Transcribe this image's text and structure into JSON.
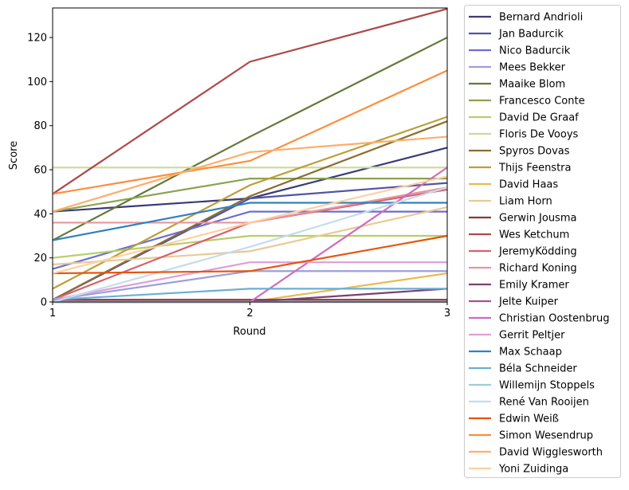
{
  "chart_data": {
    "type": "line",
    "xlabel": "Round",
    "ylabel": "Score",
    "x": [
      1,
      2,
      3
    ],
    "xticks": [
      "1",
      "2",
      "3"
    ],
    "yticks": [
      "0",
      "20",
      "40",
      "60",
      "80",
      "100",
      "120"
    ],
    "xlim": [
      1,
      3
    ],
    "ylim": [
      0,
      133.4
    ],
    "grid": false,
    "legend_position": "outside-right",
    "series": [
      {
        "name": "Bernard Andrioli",
        "color": "#393b79",
        "values": [
          41,
          47,
          70
        ]
      },
      {
        "name": "Jan Badurcik",
        "color": "#5254a3",
        "values": [
          1,
          47,
          54
        ]
      },
      {
        "name": "Nico Badurcik",
        "color": "#6b6ecf",
        "values": [
          15,
          41,
          41
        ]
      },
      {
        "name": "Mees Bekker",
        "color": "#9c9ede",
        "values": [
          1,
          14,
          14
        ]
      },
      {
        "name": "Maaike Blom",
        "color": "#637939",
        "values": [
          28,
          75,
          120
        ]
      },
      {
        "name": "Francesco Conte",
        "color": "#8ca252",
        "values": [
          41,
          56,
          56
        ]
      },
      {
        "name": "David De Graaf",
        "color": "#b5cf6b",
        "values": [
          20,
          30,
          30
        ]
      },
      {
        "name": "Floris De Vooys",
        "color": "#cedb9c",
        "values": [
          61,
          61,
          61
        ]
      },
      {
        "name": "Spyros Dovas",
        "color": "#8c6d31",
        "values": [
          1,
          48,
          82
        ]
      },
      {
        "name": "Thijs Feenstra",
        "color": "#bd9e39",
        "values": [
          6,
          53,
          84
        ]
      },
      {
        "name": "David Haas",
        "color": "#e7ba52",
        "values": [
          0,
          0,
          13
        ]
      },
      {
        "name": "Liam Horn",
        "color": "#e7cb94",
        "values": [
          17,
          23,
          43
        ]
      },
      {
        "name": "Gerwin Jousma",
        "color": "#843c39",
        "values": [
          1,
          1,
          1
        ]
      },
      {
        "name": "Wes Ketchum",
        "color": "#ad494a",
        "values": [
          49,
          109,
          133
        ]
      },
      {
        "name": "JeremyKödding",
        "color": "#d6616b",
        "values": [
          1,
          36,
          51
        ]
      },
      {
        "name": "Richard Koning",
        "color": "#e7969c",
        "values": [
          36,
          36,
          52
        ]
      },
      {
        "name": "Emily Kramer",
        "color": "#7b4173",
        "values": [
          0,
          0,
          6
        ]
      },
      {
        "name": "Jelte Kuiper",
        "color": "#a55194",
        "values": [
          0,
          0,
          0
        ]
      },
      {
        "name": "Christian Oostenbrug",
        "color": "#ce6dbd",
        "values": [
          0,
          0,
          61
        ]
      },
      {
        "name": "Gerrit Peltjer",
        "color": "#de9ed6",
        "values": [
          1,
          18,
          18
        ]
      },
      {
        "name": "Max Schaap",
        "color": "#3182bd",
        "values": [
          28,
          45,
          45
        ]
      },
      {
        "name": "Béla Schneider",
        "color": "#6baed6",
        "values": [
          1,
          6,
          6
        ]
      },
      {
        "name": "Willemijn Stoppels",
        "color": "#9ecae1",
        "values": [
          0,
          0,
          0
        ]
      },
      {
        "name": "René Van Rooijen",
        "color": "#c6dbef",
        "values": [
          0,
          25,
          52
        ]
      },
      {
        "name": "Edwin Weiß",
        "color": "#e6550d",
        "values": [
          13,
          14,
          30
        ]
      },
      {
        "name": "Simon Wesendrup",
        "color": "#fd8d3c",
        "values": [
          49,
          64,
          105
        ]
      },
      {
        "name": "David Wigglesworth",
        "color": "#fdae6b",
        "values": [
          41,
          68,
          75
        ]
      },
      {
        "name": "Yoni Zuidinga",
        "color": "#fdd0a2",
        "values": [
          13,
          36,
          57
        ]
      }
    ]
  }
}
